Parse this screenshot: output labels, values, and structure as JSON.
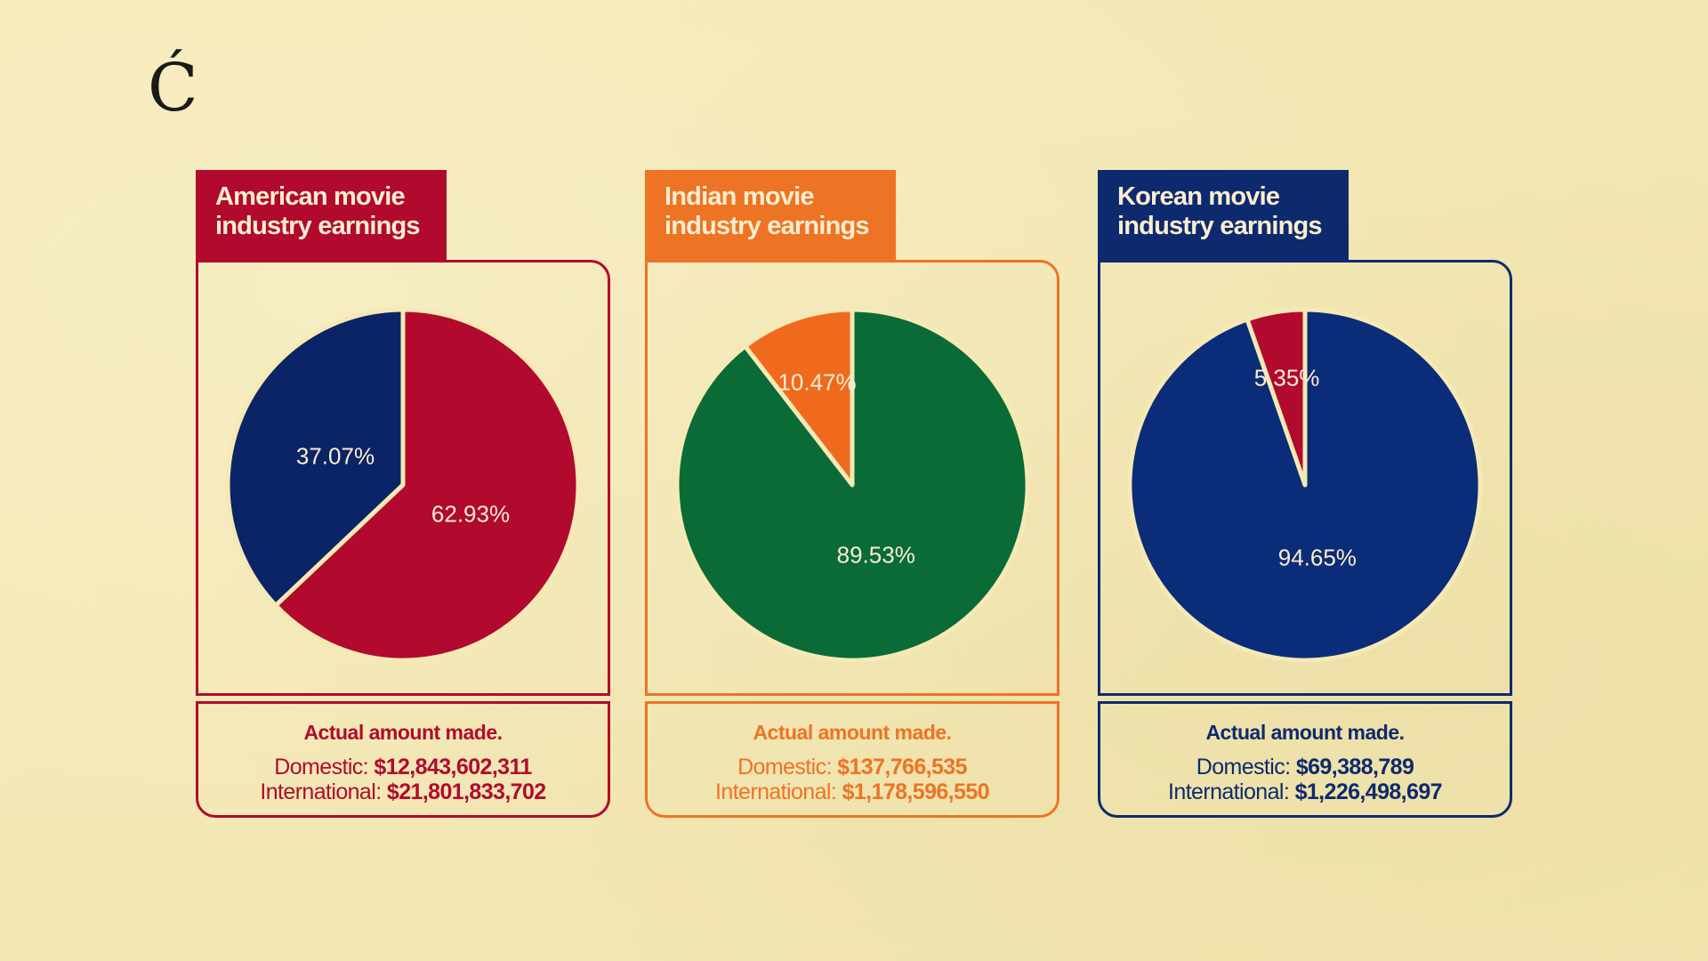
{
  "logo": {
    "mark": "Ć"
  },
  "chart_data": [
    {
      "type": "pie",
      "title": "American movie\nindustry earnings",
      "accent": "#b10a2e",
      "slices": [
        {
          "label": "Domestic",
          "percent": 37.07,
          "display": "37.07%",
          "color": "#0b2466"
        },
        {
          "label": "International",
          "percent": 62.93,
          "display": "62.93%",
          "color": "#b10a2e"
        }
      ],
      "amounts": {
        "heading": "Actual amount made.",
        "domestic_label": "Domestic:",
        "domestic_value": "$12,843,602,311",
        "international_label": "International:",
        "international_value": "$21,801,833,702"
      }
    },
    {
      "type": "pie",
      "title": "Indian movie\nindustry earnings",
      "accent": "#ed7424",
      "slices": [
        {
          "label": "Domestic",
          "percent": 10.47,
          "display": "10.47%",
          "color": "#f06a1e"
        },
        {
          "label": "International",
          "percent": 89.53,
          "display": "89.53%",
          "color": "#0a6b37"
        }
      ],
      "amounts": {
        "heading": "Actual amount made.",
        "domestic_label": "Domestic:",
        "domestic_value": "$137,766,535",
        "international_label": "International:",
        "international_value": "$1,178,596,550"
      }
    },
    {
      "type": "pie",
      "title": "Korean movie\nindustry earnings",
      "accent": "#0e2a6e",
      "slices": [
        {
          "label": "Domestic",
          "percent": 5.35,
          "display": "5.35%",
          "color": "#b10a2e"
        },
        {
          "label": "International",
          "percent": 94.65,
          "display": "94.65%",
          "color": "#0b2c78"
        }
      ],
      "amounts": {
        "heading": "Actual amount made.",
        "domestic_label": "Domestic:",
        "domestic_value": "$69,388,789",
        "international_label": "International:",
        "international_value": "$1,226,498,697"
      }
    }
  ]
}
